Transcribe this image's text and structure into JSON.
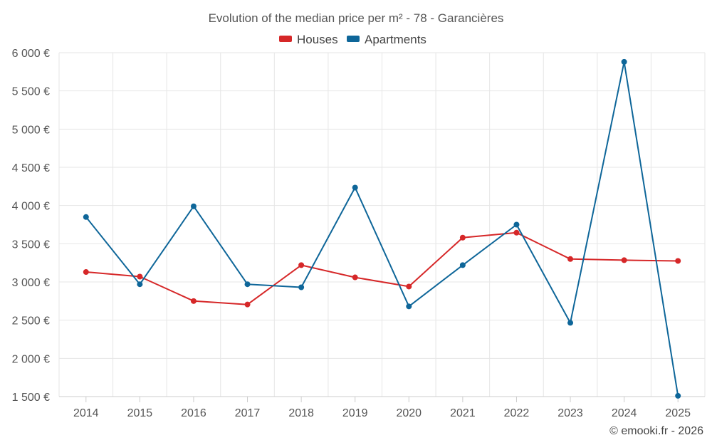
{
  "chart_data": {
    "type": "line",
    "title": "Evolution of the median price per m² - 78 - Garancières",
    "categories": [
      "2014",
      "2015",
      "2016",
      "2017",
      "2018",
      "2019",
      "2020",
      "2021",
      "2022",
      "2023",
      "2024",
      "2025"
    ],
    "series": [
      {
        "name": "Houses",
        "color": "#d62728",
        "values": [
          3130,
          3070,
          2750,
          2705,
          3220,
          3060,
          2940,
          3580,
          3645,
          3300,
          3285,
          3275
        ]
      },
      {
        "name": "Apartments",
        "color": "#0e6699",
        "values": [
          3850,
          2970,
          3990,
          2970,
          2930,
          4235,
          2680,
          3220,
          3750,
          2465,
          5880,
          1510
        ]
      }
    ],
    "ylim": [
      1500,
      6000
    ],
    "yticks": [
      "1 500 €",
      "2 000 €",
      "2 500 €",
      "3 000 €",
      "3 500 €",
      "4 000 €",
      "4 500 €",
      "5 000 €",
      "5 500 €",
      "6 000 €"
    ],
    "ytick_values": [
      1500,
      2000,
      2500,
      3000,
      3500,
      4000,
      4500,
      5000,
      5500,
      6000
    ],
    "legend_position": "top-center",
    "grid": true
  },
  "credit": "© emooki.fr - 2026"
}
